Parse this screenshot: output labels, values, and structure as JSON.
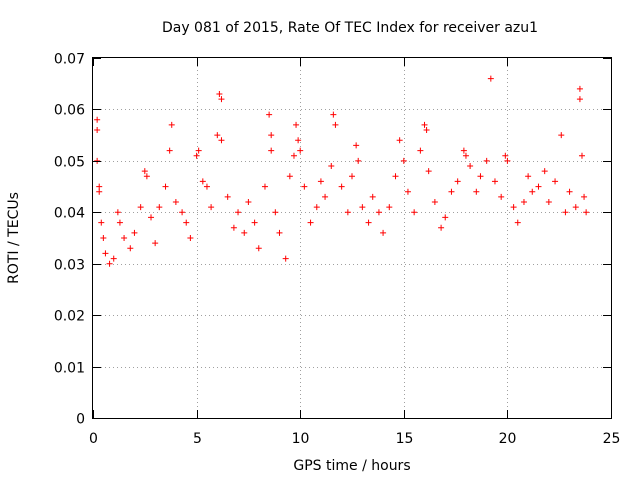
{
  "chart_data": {
    "type": "scatter",
    "title": "Day 081 of 2015, Rate Of TEC Index for receiver azu1",
    "xlabel": "GPS time / hours",
    "ylabel": "ROTI / TECUs",
    "xlim": [
      0,
      25
    ],
    "ylim": [
      0,
      0.07
    ],
    "xticks": [
      0,
      5,
      10,
      15,
      20,
      25
    ],
    "xtick_labels": [
      "0",
      "5",
      "10",
      "15",
      "20",
      "25"
    ],
    "yticks": [
      0,
      0.01,
      0.02,
      0.03,
      0.04,
      0.05,
      0.06,
      0.07
    ],
    "ytick_labels": [
      "0",
      "0.01",
      "0.02",
      "0.03",
      "0.04",
      "0.05",
      "0.06",
      "0.07"
    ],
    "grid": true,
    "marker": "+",
    "marker_color": "#ff0000",
    "series": [
      {
        "name": "ROTI",
        "points": [
          [
            0.2,
            0.058
          ],
          [
            0.2,
            0.056
          ],
          [
            0.2,
            0.05
          ],
          [
            0.3,
            0.045
          ],
          [
            0.3,
            0.044
          ],
          [
            0.4,
            0.038
          ],
          [
            0.5,
            0.035
          ],
          [
            0.6,
            0.032
          ],
          [
            0.8,
            0.03
          ],
          [
            1.0,
            0.031
          ],
          [
            1.2,
            0.04
          ],
          [
            1.3,
            0.038
          ],
          [
            1.5,
            0.035
          ],
          [
            1.8,
            0.033
          ],
          [
            2.0,
            0.036
          ],
          [
            2.3,
            0.041
          ],
          [
            2.5,
            0.048
          ],
          [
            2.6,
            0.047
          ],
          [
            2.8,
            0.039
          ],
          [
            3.0,
            0.034
          ],
          [
            3.2,
            0.041
          ],
          [
            3.5,
            0.045
          ],
          [
            3.7,
            0.052
          ],
          [
            3.8,
            0.057
          ],
          [
            4.0,
            0.042
          ],
          [
            4.3,
            0.04
          ],
          [
            4.5,
            0.038
          ],
          [
            4.7,
            0.035
          ],
          [
            5.0,
            0.051
          ],
          [
            5.1,
            0.052
          ],
          [
            5.3,
            0.046
          ],
          [
            5.5,
            0.045
          ],
          [
            5.7,
            0.041
          ],
          [
            6.0,
            0.055
          ],
          [
            6.1,
            0.063
          ],
          [
            6.2,
            0.062
          ],
          [
            6.2,
            0.054
          ],
          [
            6.5,
            0.043
          ],
          [
            6.8,
            0.037
          ],
          [
            7.0,
            0.04
          ],
          [
            7.3,
            0.036
          ],
          [
            7.5,
            0.042
          ],
          [
            7.8,
            0.038
          ],
          [
            8.0,
            0.033
          ],
          [
            8.3,
            0.045
          ],
          [
            8.5,
            0.059
          ],
          [
            8.6,
            0.055
          ],
          [
            8.6,
            0.052
          ],
          [
            8.8,
            0.04
          ],
          [
            9.0,
            0.036
          ],
          [
            9.3,
            0.031
          ],
          [
            9.5,
            0.047
          ],
          [
            9.7,
            0.051
          ],
          [
            9.8,
            0.057
          ],
          [
            9.9,
            0.054
          ],
          [
            10.0,
            0.052
          ],
          [
            10.2,
            0.045
          ],
          [
            10.5,
            0.038
          ],
          [
            10.8,
            0.041
          ],
          [
            11.0,
            0.046
          ],
          [
            11.2,
            0.043
          ],
          [
            11.5,
            0.049
          ],
          [
            11.6,
            0.059
          ],
          [
            11.7,
            0.057
          ],
          [
            12.0,
            0.045
          ],
          [
            12.3,
            0.04
          ],
          [
            12.5,
            0.047
          ],
          [
            12.7,
            0.053
          ],
          [
            12.8,
            0.05
          ],
          [
            13.0,
            0.041
          ],
          [
            13.3,
            0.038
          ],
          [
            13.5,
            0.043
          ],
          [
            13.8,
            0.04
          ],
          [
            14.0,
            0.036
          ],
          [
            14.3,
            0.041
          ],
          [
            14.6,
            0.047
          ],
          [
            14.8,
            0.054
          ],
          [
            15.0,
            0.05
          ],
          [
            15.2,
            0.044
          ],
          [
            15.5,
            0.04
          ],
          [
            15.8,
            0.052
          ],
          [
            16.0,
            0.057
          ],
          [
            16.1,
            0.056
          ],
          [
            16.2,
            0.048
          ],
          [
            16.5,
            0.042
          ],
          [
            16.8,
            0.037
          ],
          [
            17.0,
            0.039
          ],
          [
            17.3,
            0.044
          ],
          [
            17.6,
            0.046
          ],
          [
            17.9,
            0.052
          ],
          [
            18.0,
            0.051
          ],
          [
            18.2,
            0.049
          ],
          [
            18.5,
            0.044
          ],
          [
            18.7,
            0.047
          ],
          [
            19.0,
            0.05
          ],
          [
            19.2,
            0.066
          ],
          [
            19.4,
            0.046
          ],
          [
            19.7,
            0.043
          ],
          [
            19.9,
            0.051
          ],
          [
            20.0,
            0.05
          ],
          [
            20.3,
            0.041
          ],
          [
            20.5,
            0.038
          ],
          [
            20.8,
            0.042
          ],
          [
            21.0,
            0.047
          ],
          [
            21.2,
            0.044
          ],
          [
            21.5,
            0.045
          ],
          [
            21.8,
            0.048
          ],
          [
            22.0,
            0.042
          ],
          [
            22.3,
            0.046
          ],
          [
            22.6,
            0.055
          ],
          [
            22.8,
            0.04
          ],
          [
            23.0,
            0.044
          ],
          [
            23.3,
            0.041
          ],
          [
            23.5,
            0.064
          ],
          [
            23.5,
            0.062
          ],
          [
            23.6,
            0.051
          ],
          [
            23.7,
            0.043
          ],
          [
            23.8,
            0.04
          ]
        ]
      }
    ]
  }
}
